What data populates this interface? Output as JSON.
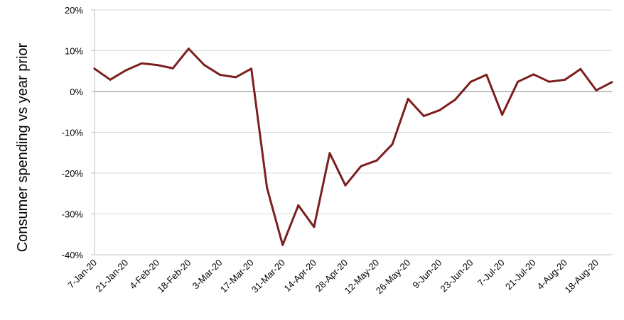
{
  "chart_data": {
    "type": "line",
    "title": "",
    "xlabel": "",
    "ylabel": "Consumer spending vs year prior",
    "ylim": [
      -40,
      20
    ],
    "yticks": [
      20,
      10,
      0,
      -10,
      -20,
      -30,
      -40
    ],
    "ytick_labels": [
      "20%",
      "10%",
      "0%",
      "-10%",
      "-20%",
      "-30%",
      "-40%"
    ],
    "x_tick_labels": [
      "7-Jan-20",
      "21-Jan-20",
      "4-Feb-20",
      "18-Feb-20",
      "3-Mar-20",
      "17-Mar-20",
      "31-Mar-20",
      "14-Apr-20",
      "28-Apr-20",
      "12-May-20",
      "26-May-20",
      "9-Jun-20",
      "23-Jun-20",
      "7-Jul-20",
      "21-Jul-20",
      "4-Aug-20",
      "18-Aug-20"
    ],
    "grid": true,
    "legend": "none",
    "series": [
      {
        "color": "#7b1f1f",
        "x": [
          "7-Jan-20",
          "14-Jan-20",
          "21-Jan-20",
          "28-Jan-20",
          "4-Feb-20",
          "11-Feb-20",
          "18-Feb-20",
          "25-Feb-20",
          "3-Mar-20",
          "10-Mar-20",
          "17-Mar-20",
          "24-Mar-20",
          "31-Mar-20",
          "7-Apr-20",
          "14-Apr-20",
          "21-Apr-20",
          "28-Apr-20",
          "5-May-20",
          "12-May-20",
          "19-May-20",
          "26-May-20",
          "2-Jun-20",
          "9-Jun-20",
          "16-Jun-20",
          "23-Jun-20",
          "30-Jun-20",
          "7-Jul-20",
          "14-Jul-20",
          "21-Jul-20",
          "28-Jul-20",
          "4-Aug-20",
          "11-Aug-20",
          "18-Aug-20",
          "25-Aug-20"
        ],
        "values": [
          5.6,
          2.9,
          5.2,
          6.9,
          6.5,
          5.7,
          10.5,
          6.5,
          4.1,
          3.5,
          5.6,
          -23.6,
          -37.6,
          -27.9,
          -33.2,
          -15.1,
          -23.0,
          -18.3,
          -16.9,
          -12.9,
          -1.8,
          -6.0,
          -4.6,
          -2.0,
          2.4,
          4.1,
          -5.7,
          2.4,
          4.2,
          2.4,
          2.9,
          5.5,
          0.3,
          2.3
        ]
      }
    ]
  },
  "colors": {
    "line": "#7b1f1f",
    "grid": "#d9d9d9",
    "zero_line": "#7f7f7f",
    "axis": "#bfbfbf"
  }
}
